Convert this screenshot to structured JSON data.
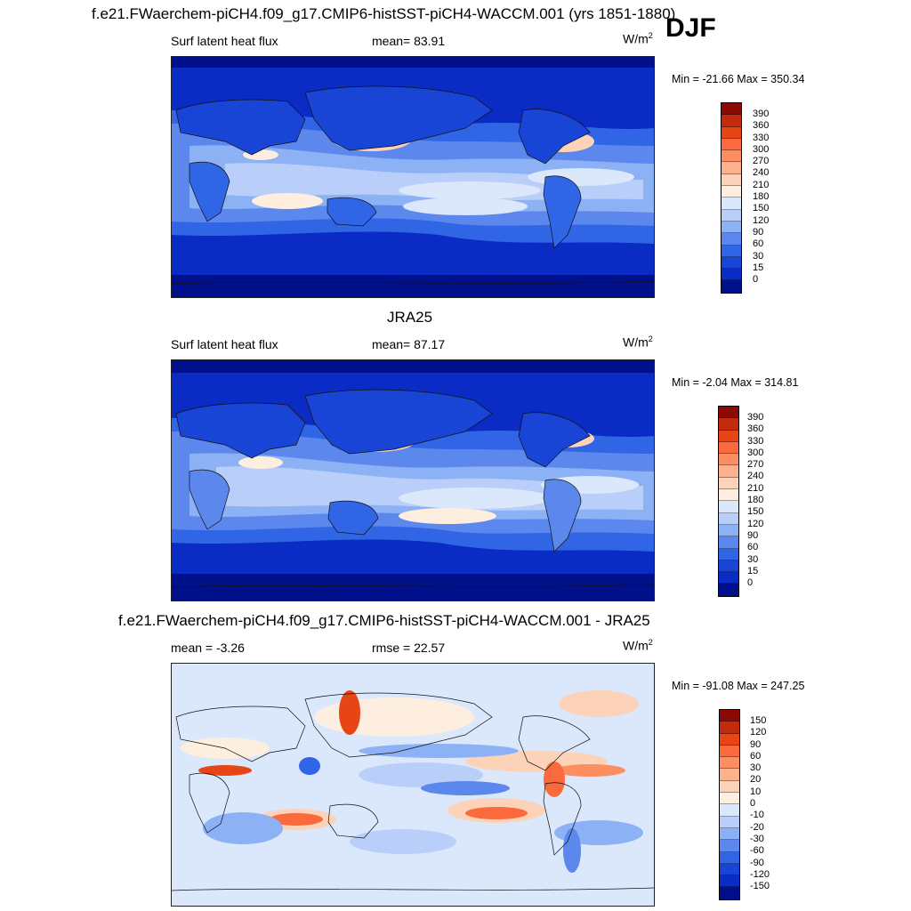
{
  "figure": {
    "title_case": "f.e21.FWaerchem-piCH4.f09_g17.CMIP6-histSST-piCH4-WACCM.001 (yrs 1851-1880)",
    "season": "DJF"
  },
  "panels": [
    {
      "id": "model",
      "left_label": "Surf latent heat flux",
      "center_label": "mean=  83.91",
      "units": "W/m",
      "units_sup": "2",
      "minmax": "Min = -21.66 Max = 350.34",
      "colorbar": {
        "labels": [
          "390",
          "360",
          "330",
          "300",
          "270",
          "240",
          "210",
          "180",
          "150",
          "120",
          "90",
          "60",
          "30",
          "15",
          "0"
        ],
        "colors": [
          "#8b0a05",
          "#c22b0c",
          "#e84516",
          "#fb6a3d",
          "#fc8e62",
          "#fcb08c",
          "#fcd2b8",
          "#fdeedf",
          "#dbe8fb",
          "#b9cff9",
          "#8cb1f5",
          "#5c88ee",
          "#3065e6",
          "#1845d6",
          "#0a2bc4",
          "#00108a"
        ]
      }
    },
    {
      "id": "obs",
      "title": "JRA25",
      "left_label": "Surf latent heat flux",
      "center_label": "mean=  87.17",
      "units": "W/m",
      "units_sup": "2",
      "minmax": "Min =  -2.04 Max = 314.81",
      "colorbar": {
        "labels": [
          "390",
          "360",
          "330",
          "300",
          "270",
          "240",
          "210",
          "180",
          "150",
          "120",
          "90",
          "60",
          "30",
          "15",
          "0"
        ],
        "colors": [
          "#8b0a05",
          "#c22b0c",
          "#e84516",
          "#fb6a3d",
          "#fc8e62",
          "#fcb08c",
          "#fcd2b8",
          "#fdeedf",
          "#dbe8fb",
          "#b9cff9",
          "#8cb1f5",
          "#5c88ee",
          "#3065e6",
          "#1845d6",
          "#0a2bc4",
          "#00108a"
        ]
      }
    },
    {
      "id": "diff",
      "title": "f.e21.FWaerchem-piCH4.f09_g17.CMIP6-histSST-piCH4-WACCM.001 - JRA25",
      "left_label": "mean =  -3.26",
      "center_label": "rmse =  22.57",
      "units": "W/m",
      "units_sup": "2",
      "minmax": "Min = -91.08 Max = 247.25",
      "colorbar": {
        "labels": [
          "150",
          "120",
          "90",
          "60",
          "30",
          "20",
          "10",
          "0",
          "-10",
          "-20",
          "-30",
          "-60",
          "-90",
          "-120",
          "-150"
        ],
        "colors": [
          "#8b0a05",
          "#c22b0c",
          "#e84516",
          "#fb6a3d",
          "#fc8e62",
          "#fcb08c",
          "#fcd2b8",
          "#fdeedf",
          "#dbe8fb",
          "#b9cff9",
          "#8cb1f5",
          "#5c88ee",
          "#3065e6",
          "#1845d6",
          "#0a2bc4",
          "#00108a"
        ]
      }
    }
  ]
}
